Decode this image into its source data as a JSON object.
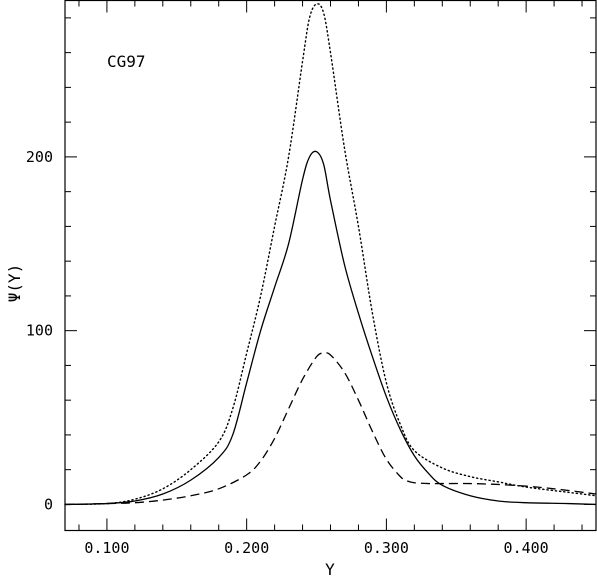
{
  "chart_data": {
    "type": "line",
    "title": "",
    "xlabel": "Y",
    "ylabel": "Ψ(Y)",
    "xlim": [
      0.07,
      0.45
    ],
    "ylim": [
      -15,
      290
    ],
    "annotation": "CG97",
    "grid": false,
    "x_ticks": [
      {
        "value": 0.1,
        "label": "0.100"
      },
      {
        "value": 0.2,
        "label": "0.200"
      },
      {
        "value": 0.3,
        "label": "0.300"
      },
      {
        "value": 0.4,
        "label": "0.400"
      }
    ],
    "y_ticks": [
      {
        "value": 0,
        "label": "0"
      },
      {
        "value": 100,
        "label": "100"
      },
      {
        "value": 200,
        "label": "200"
      }
    ],
    "series": [
      {
        "style": "solid",
        "x": [
          0.07,
          0.1,
          0.12,
          0.14,
          0.16,
          0.18,
          0.19,
          0.2,
          0.21,
          0.22,
          0.23,
          0.24,
          0.245,
          0.25,
          0.255,
          0.26,
          0.27,
          0.28,
          0.29,
          0.3,
          0.31,
          0.32,
          0.33,
          0.34,
          0.36,
          0.38,
          0.4,
          0.43,
          0.45
        ],
        "y": [
          0,
          0.5,
          2,
          6,
          14,
          27,
          40,
          70,
          100,
          125,
          150,
          187,
          200,
          203,
          196,
          175,
          138,
          110,
          85,
          62,
          43,
          28,
          18,
          11,
          5,
          2,
          1,
          0.5,
          0
        ]
      },
      {
        "style": "dashed",
        "x": [
          0.07,
          0.1,
          0.12,
          0.14,
          0.16,
          0.18,
          0.2,
          0.21,
          0.22,
          0.23,
          0.24,
          0.25,
          0.255,
          0.26,
          0.27,
          0.28,
          0.29,
          0.3,
          0.31,
          0.315,
          0.32,
          0.33,
          0.34,
          0.36,
          0.38,
          0.4,
          0.42,
          0.45
        ],
        "y": [
          0,
          0.5,
          1,
          2.5,
          5,
          9,
          17,
          25,
          38,
          55,
          72,
          85,
          87,
          86,
          76,
          60,
          42,
          26,
          16,
          13.5,
          12.5,
          12,
          12,
          12,
          11.5,
          10.5,
          9,
          6
        ]
      },
      {
        "style": "dotted",
        "x": [
          0.07,
          0.1,
          0.12,
          0.14,
          0.16,
          0.18,
          0.19,
          0.2,
          0.21,
          0.22,
          0.23,
          0.24,
          0.245,
          0.25,
          0.255,
          0.26,
          0.27,
          0.28,
          0.29,
          0.3,
          0.31,
          0.32,
          0.34,
          0.36,
          0.38,
          0.4,
          0.43,
          0.45
        ],
        "y": [
          0,
          0.5,
          3,
          9,
          20,
          36,
          55,
          87,
          120,
          160,
          200,
          255,
          280,
          288,
          283,
          260,
          205,
          160,
          110,
          70,
          46,
          31,
          21,
          16,
          13,
          10,
          7,
          5
        ]
      }
    ]
  }
}
